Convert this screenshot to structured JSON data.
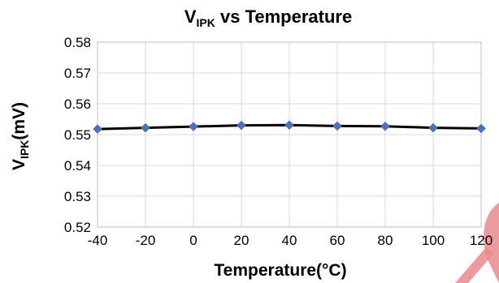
{
  "chart_data": {
    "type": "line",
    "title": {
      "main": "V",
      "sub": "IPK",
      "rest": " vs Temperature"
    },
    "xlabel": "Temperature(°C)",
    "ylabel": {
      "main": "V",
      "sub": "IPK",
      "rest": "(mV)"
    },
    "x": [
      -40,
      -20,
      0,
      20,
      40,
      60,
      80,
      100,
      120
    ],
    "xticks": [
      "-40",
      "-20",
      "0",
      "20",
      "40",
      "60",
      "80",
      "100",
      "120"
    ],
    "xlim": [
      -40,
      120
    ],
    "series": [
      {
        "values": [
          0.5518,
          0.5522,
          0.5526,
          0.553,
          0.5531,
          0.5528,
          0.5527,
          0.5522,
          0.552
        ]
      }
    ],
    "yticks": [
      "0.52",
      "0.53",
      "0.54",
      "0.55",
      "0.56",
      "0.57",
      "0.58"
    ],
    "ytick_values": [
      0.52,
      0.53,
      0.54,
      0.55,
      0.56,
      0.57,
      0.58
    ],
    "ylim": [
      0.52,
      0.58
    ],
    "grid": true,
    "legend": "none",
    "colors": {
      "line": "#000000",
      "marker": "#4472c4",
      "grid": "#d9d9d9"
    }
  }
}
